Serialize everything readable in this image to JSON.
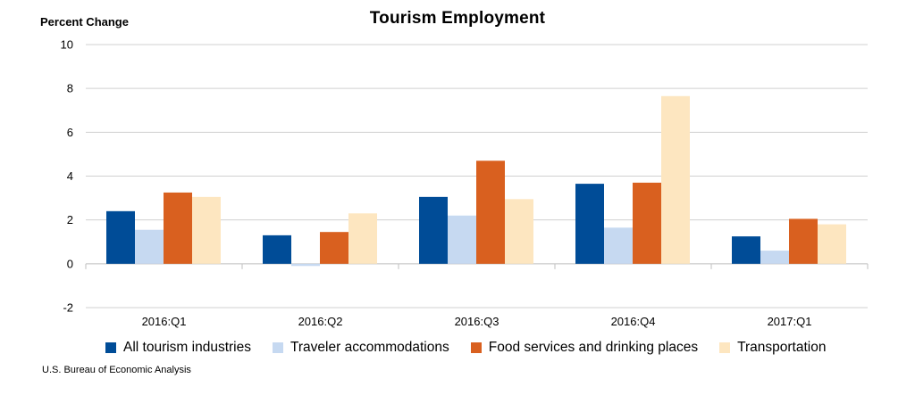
{
  "source_note": "U.S. Bureau of Economic Analysis",
  "chart_data": {
    "type": "bar",
    "title": "Tourism Employment",
    "ylabel": "Percent Change",
    "xlabel": "",
    "ylim": [
      -2,
      10
    ],
    "yticks": [
      -2,
      0,
      2,
      4,
      6,
      8,
      10
    ],
    "grid": true,
    "legend_position": "bottom",
    "categories": [
      "2016:Q1",
      "2016:Q2",
      "2016:Q3",
      "2016:Q4",
      "2017:Q1"
    ],
    "series": [
      {
        "name": "All tourism industries",
        "color": "#004C97",
        "values": [
          2.4,
          1.3,
          3.05,
          3.65,
          1.25
        ]
      },
      {
        "name": "Traveler accommodations",
        "color": "#C6D9F1",
        "values": [
          1.55,
          -0.1,
          2.2,
          1.65,
          0.6
        ]
      },
      {
        "name": "Food services and drinking places",
        "color": "#D9601F",
        "values": [
          3.25,
          1.45,
          4.7,
          3.7,
          2.05
        ]
      },
      {
        "name": "Transportation",
        "color": "#FDE6C0",
        "values": [
          3.05,
          2.3,
          2.95,
          7.65,
          1.8
        ]
      }
    ]
  }
}
